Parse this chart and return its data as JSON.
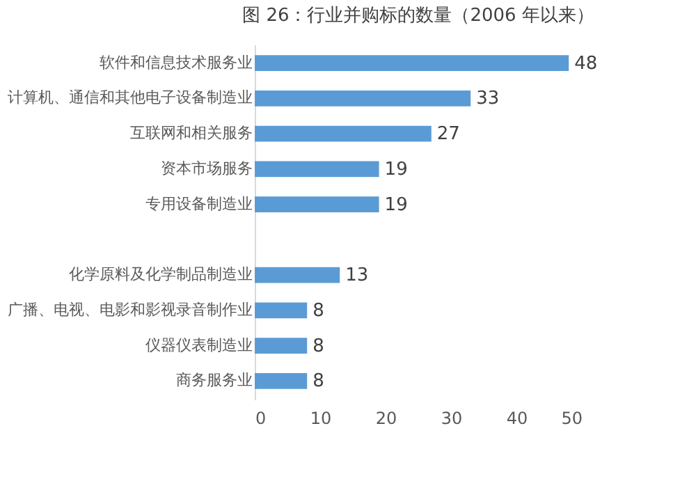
{
  "chart_data": {
    "type": "bar",
    "orientation": "horizontal",
    "title": "图 26：行业并购标的数量（2006 年以来）",
    "categories": [
      "软件和信息技术服务业",
      "计算机、通信和其他电子设备制造业",
      "互联网和相关服务",
      "资本市场服务",
      "专用设备制造业",
      null,
      "化学原料及化学制品制造业",
      "广播、电视、电影和影视录音制作业",
      "仪器仪表制造业",
      "商务服务业"
    ],
    "values": [
      48,
      33,
      27,
      19,
      19,
      null,
      13,
      8,
      8,
      8
    ],
    "color": "#5b9bd5",
    "data_labels": true,
    "xlim": [
      0,
      50
    ],
    "xticks": [
      0,
      10,
      20,
      30,
      40,
      50
    ],
    "grid": false
  }
}
